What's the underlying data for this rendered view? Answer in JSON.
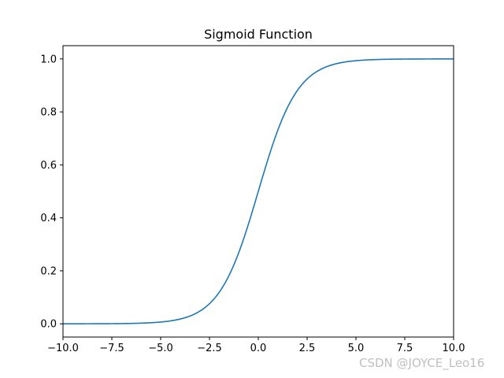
{
  "chart_data": {
    "type": "line",
    "title": "Sigmoid Function",
    "xlabel": "",
    "ylabel": "",
    "xlim": [
      -10,
      10
    ],
    "ylim": [
      -0.05,
      1.05
    ],
    "function": "1 / (1 + exp(-x))",
    "x_ticks": [
      -10,
      -7.5,
      -5,
      -2.5,
      0,
      2.5,
      5,
      7.5,
      10
    ],
    "x_tick_labels": [
      "−10.0",
      "−7.5",
      "−5.0",
      "−2.5",
      "0.0",
      "2.5",
      "5.0",
      "7.5",
      "10.0"
    ],
    "y_ticks": [
      0,
      0.2,
      0.4,
      0.6,
      0.8,
      1.0
    ],
    "y_tick_labels": [
      "0.0",
      "0.2",
      "0.4",
      "0.6",
      "0.8",
      "1.0"
    ],
    "grid": false,
    "series": [
      {
        "color": "#1f77b4",
        "x": [
          -10,
          -9,
          -8,
          -7,
          -6,
          -5,
          -4,
          -3,
          -2.5,
          -2,
          -1.5,
          -1,
          -0.5,
          0,
          0.5,
          1,
          1.5,
          2,
          2.5,
          3,
          4,
          5,
          6,
          7,
          8,
          9,
          10
        ],
        "y": [
          4.54e-05,
          0.000123,
          0.000335,
          0.000911,
          0.00247,
          0.00669,
          0.018,
          0.0474,
          0.0759,
          0.1192,
          0.1824,
          0.2689,
          0.3775,
          0.5,
          0.6225,
          0.7311,
          0.8176,
          0.8808,
          0.9241,
          0.9526,
          0.982,
          0.9933,
          0.9975,
          0.9991,
          0.9997,
          0.9999,
          1.0
        ]
      }
    ]
  },
  "watermark": "CSDN @JOYCE_Leo16"
}
